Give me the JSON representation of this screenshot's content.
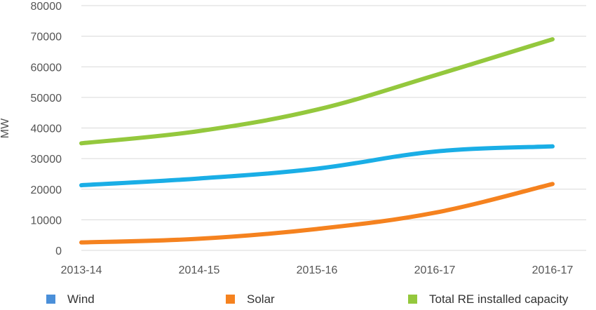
{
  "chart_data": {
    "type": "line",
    "title": "",
    "xlabel": "",
    "ylabel": "MW",
    "categories": [
      "2013-14",
      "2014-15",
      "2015-16",
      "2016-17",
      "2016-17"
    ],
    "ylim": [
      0,
      80000
    ],
    "yticks": [
      0,
      10000,
      20000,
      30000,
      40000,
      50000,
      60000,
      70000,
      80000
    ],
    "grid": "horizontal",
    "legend_position": "bottom",
    "series": [
      {
        "name": "Wind",
        "color": "#1aaee6",
        "values": [
          21300,
          23500,
          26700,
          32300,
          34000
        ]
      },
      {
        "name": "Solar",
        "color": "#f5821f",
        "values": [
          2600,
          3800,
          7000,
          12300,
          21700
        ]
      },
      {
        "name": "Total RE installed capacity",
        "color": "#94c83d",
        "values": [
          35000,
          39000,
          46000,
          57200,
          69000
        ]
      }
    ],
    "legend_marker_colors": [
      "#4a8fd9",
      "#f5821f",
      "#94c83d"
    ]
  }
}
